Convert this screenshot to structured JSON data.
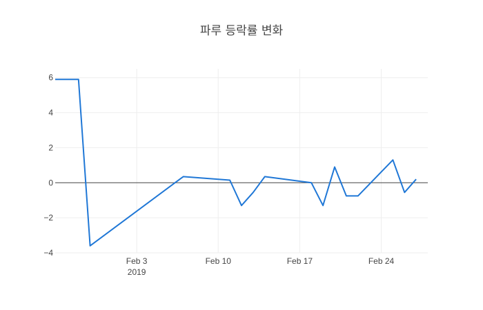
{
  "chart_data": {
    "type": "line",
    "title": "파루 등락률 변화",
    "xlabel": "",
    "ylabel": "",
    "x_range": [
      "2019-01-27",
      "2019-02-28"
    ],
    "ylim": [
      -4,
      6.5
    ],
    "y_ticks": [
      {
        "value": 6,
        "label": "6"
      },
      {
        "value": 4,
        "label": "4"
      },
      {
        "value": 2,
        "label": "2"
      },
      {
        "value": 0,
        "label": "0"
      },
      {
        "value": -2,
        "label": "−2"
      },
      {
        "value": -4,
        "label": "−4"
      }
    ],
    "x_ticks": [
      {
        "date": "2019-02-03",
        "label": "Feb 3",
        "sublabel": "2019"
      },
      {
        "date": "2019-02-10",
        "label": "Feb 10",
        "sublabel": ""
      },
      {
        "date": "2019-02-17",
        "label": "Feb 17",
        "sublabel": ""
      },
      {
        "date": "2019-02-24",
        "label": "Feb 24",
        "sublabel": ""
      }
    ],
    "grid": true,
    "zero_line": true,
    "series": [
      {
        "color": "#1f77d6",
        "x": [
          "2019-01-27",
          "2019-01-29",
          "2019-01-30",
          "2019-02-07",
          "2019-02-11",
          "2019-02-12",
          "2019-02-13",
          "2019-02-14",
          "2019-02-18",
          "2019-02-19",
          "2019-02-20",
          "2019-02-21",
          "2019-02-22",
          "2019-02-25",
          "2019-02-26",
          "2019-02-27"
        ],
        "values": [
          5.9,
          5.9,
          -3.6,
          0.35,
          0.15,
          -1.3,
          -0.55,
          0.35,
          0.0,
          -1.3,
          0.9,
          -0.75,
          -0.75,
          1.3,
          -0.55,
          0.2
        ]
      }
    ]
  }
}
